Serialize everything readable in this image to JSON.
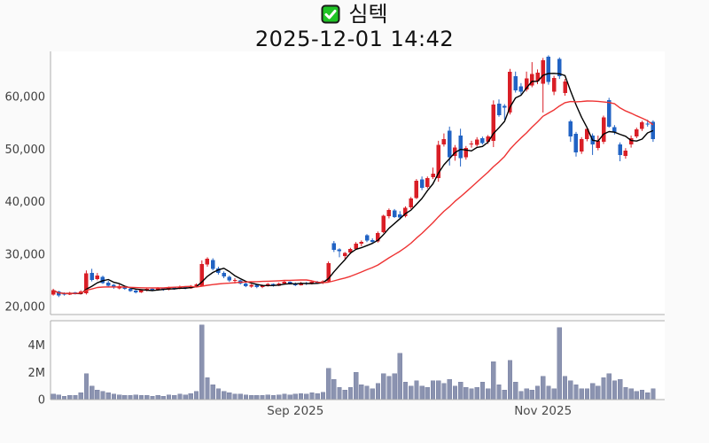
{
  "header": {
    "checkbox_icon": "checked-checkbox",
    "title": "심텍",
    "subtitle": "2025-12-01 14:42"
  },
  "colors": {
    "background": "#fafafa",
    "panel_bg": "#ffffff",
    "panel_border": "#adadad",
    "up_candle": "#d91e26",
    "down_candle": "#2163c4",
    "ma_fast": "#000000",
    "ma_slow": "#ee3333",
    "volume_bar": "#8b93b0",
    "volume_bar_border": "#7d86a6",
    "price_axis_text": "#404040",
    "x_axis_text": "#4a4a4a",
    "check_green": "#1fc426"
  },
  "chart_data": {
    "type": "candlestick",
    "title": "심텍",
    "timestamp": "2025-12-01 14:42",
    "grid": false,
    "legend": false,
    "price_axis": {
      "ticks": [
        20000,
        30000,
        40000,
        50000,
        60000
      ],
      "tick_labels": [
        "20,000",
        "30,000",
        "40,000",
        "50,000",
        "60,000"
      ],
      "range": [
        18500,
        68600
      ]
    },
    "volume_axis": {
      "ticks": [
        0,
        2000000,
        4000000
      ],
      "tick_labels": [
        "0",
        "2M",
        "4M"
      ],
      "range": [
        0,
        5800000
      ]
    },
    "x_axis": {
      "tick_dates": [
        "2025-09-01",
        "2025-11-03"
      ],
      "tick_labels": [
        "Sep 2025",
        "Nov 2025"
      ]
    },
    "overlays": [
      {
        "name": "MA5",
        "window": 5,
        "color_key": "ma_fast"
      },
      {
        "name": "MA20",
        "window": 20,
        "color_key": "ma_slow"
      }
    ],
    "dates": [
      "2025-07-01",
      "2025-07-02",
      "2025-07-03",
      "2025-07-04",
      "2025-07-07",
      "2025-07-08",
      "2025-07-09",
      "2025-07-10",
      "2025-07-11",
      "2025-07-14",
      "2025-07-15",
      "2025-07-16",
      "2025-07-17",
      "2025-07-18",
      "2025-07-21",
      "2025-07-22",
      "2025-07-23",
      "2025-07-24",
      "2025-07-25",
      "2025-07-28",
      "2025-07-29",
      "2025-07-30",
      "2025-07-31",
      "2025-08-01",
      "2025-08-04",
      "2025-08-05",
      "2025-08-06",
      "2025-08-07",
      "2025-08-08",
      "2025-08-11",
      "2025-08-12",
      "2025-08-13",
      "2025-08-14",
      "2025-08-15",
      "2025-08-18",
      "2025-08-19",
      "2025-08-20",
      "2025-08-21",
      "2025-08-22",
      "2025-08-25",
      "2025-08-26",
      "2025-08-27",
      "2025-08-28",
      "2025-08-29",
      "2025-09-01",
      "2025-09-02",
      "2025-09-03",
      "2025-09-04",
      "2025-09-05",
      "2025-09-08",
      "2025-09-09",
      "2025-09-10",
      "2025-09-11",
      "2025-09-12",
      "2025-09-15",
      "2025-09-16",
      "2025-09-17",
      "2025-09-18",
      "2025-09-19",
      "2025-09-22",
      "2025-09-23",
      "2025-09-24",
      "2025-09-25",
      "2025-09-26",
      "2025-09-29",
      "2025-09-30",
      "2025-10-01",
      "2025-10-02",
      "2025-10-03",
      "2025-10-06",
      "2025-10-07",
      "2025-10-08",
      "2025-10-09",
      "2025-10-10",
      "2025-10-13",
      "2025-10-14",
      "2025-10-15",
      "2025-10-16",
      "2025-10-17",
      "2025-10-20",
      "2025-10-21",
      "2025-10-22",
      "2025-10-23",
      "2025-10-24",
      "2025-10-27",
      "2025-10-28",
      "2025-10-29",
      "2025-10-30",
      "2025-10-31",
      "2025-11-03",
      "2025-11-04",
      "2025-11-05",
      "2025-11-06",
      "2025-11-07",
      "2025-11-10",
      "2025-11-11",
      "2025-11-12",
      "2025-11-13",
      "2025-11-14",
      "2025-11-17",
      "2025-11-18",
      "2025-11-19",
      "2025-11-20",
      "2025-11-21",
      "2025-11-24",
      "2025-11-25",
      "2025-11-26",
      "2025-11-27",
      "2025-11-28",
      "2025-12-01"
    ],
    "open": [
      22300,
      22900,
      22500,
      22300,
      22700,
      22400,
      22500,
      26400,
      25200,
      25700,
      24600,
      24100,
      23500,
      23800,
      23400,
      23000,
      22700,
      23100,
      23400,
      23100,
      23500,
      23200,
      23600,
      23400,
      23800,
      23500,
      23900,
      24000,
      28000,
      28900,
      27300,
      26400,
      25700,
      24900,
      25000,
      24400,
      23800,
      24100,
      23700,
      24000,
      24300,
      24000,
      24400,
      24700,
      24400,
      24100,
      24500,
      24300,
      24700,
      24500,
      24800,
      32100,
      30900,
      29600,
      30300,
      31000,
      32000,
      33600,
      32700,
      32400,
      34200,
      37200,
      38300,
      37600,
      37200,
      38900,
      40700,
      44200,
      42800,
      44700,
      44500,
      50900,
      53500,
      48700,
      52600,
      48500,
      50900,
      50800,
      52100,
      51400,
      51600,
      58700,
      58300,
      57000,
      63900,
      62000,
      61400,
      62100,
      63000,
      62500,
      67600,
      61000,
      67200,
      60700,
      55300,
      52900,
      49600,
      51900,
      52600,
      50200,
      51400,
      59400,
      54200,
      50900,
      48700,
      50900,
      52400,
      53900,
      54900,
      55200
    ],
    "high": [
      23400,
      23000,
      22700,
      22800,
      22800,
      23100,
      26900,
      27200,
      26400,
      25900,
      24900,
      24300,
      24200,
      23900,
      23600,
      23200,
      23300,
      23600,
      23500,
      23700,
      23600,
      23800,
      23800,
      24000,
      23900,
      24100,
      24400,
      28800,
      29400,
      29200,
      27600,
      26700,
      25900,
      25400,
      25100,
      24600,
      24300,
      24200,
      24200,
      24500,
      24400,
      24600,
      24900,
      24800,
      24600,
      24700,
      24700,
      24900,
      24900,
      25000,
      28600,
      32500,
      31100,
      30400,
      31200,
      32300,
      32600,
      33800,
      33000,
      34300,
      37500,
      38700,
      38600,
      38200,
      39100,
      40900,
      44300,
      44800,
      44800,
      46500,
      51600,
      53000,
      54300,
      50800,
      53900,
      50600,
      51600,
      52300,
      52400,
      52700,
      59300,
      59500,
      58600,
      65300,
      64800,
      62600,
      64800,
      66600,
      65200,
      67400,
      67900,
      64000,
      67500,
      63400,
      55600,
      53300,
      52300,
      54200,
      53000,
      52600,
      56400,
      59800,
      54600,
      51300,
      50200,
      52600,
      54100,
      55400,
      55600,
      55500
    ],
    "low": [
      22100,
      21800,
      22100,
      22200,
      22300,
      22300,
      22300,
      24800,
      25000,
      24300,
      23800,
      23400,
      23300,
      23200,
      22800,
      22500,
      22600,
      22900,
      22900,
      23000,
      23000,
      23100,
      23200,
      23300,
      23300,
      23400,
      23700,
      23800,
      27600,
      26900,
      26100,
      25400,
      24700,
      24400,
      24200,
      23700,
      23600,
      23500,
      23500,
      23800,
      23800,
      23900,
      24200,
      24200,
      23900,
      24000,
      24100,
      24200,
      24300,
      24300,
      24600,
      30400,
      29400,
      29100,
      30000,
      30800,
      31500,
      32300,
      32000,
      32200,
      34000,
      36800,
      36900,
      36600,
      37000,
      38600,
      40500,
      42200,
      42500,
      44300,
      43800,
      50500,
      46900,
      47800,
      46700,
      48000,
      50300,
      50500,
      50900,
      51000,
      50400,
      56200,
      55600,
      56600,
      60800,
      60400,
      61000,
      61800,
      62400,
      57000,
      62300,
      60300,
      63400,
      60200,
      51400,
      48600,
      49100,
      51500,
      48900,
      49800,
      51000,
      54100,
      52800,
      47700,
      48200,
      50300,
      52100,
      53500,
      54300,
      51400
    ],
    "close": [
      23100,
      22100,
      22300,
      22600,
      22400,
      22900,
      26300,
      25100,
      25900,
      24500,
      24000,
      23600,
      23900,
      23400,
      23000,
      22700,
      23100,
      23400,
      23100,
      23500,
      23200,
      23600,
      23400,
      23800,
      23500,
      23900,
      24200,
      28100,
      29100,
      27200,
      26400,
      25700,
      25000,
      25100,
      24400,
      23900,
      24100,
      23700,
      24000,
      24300,
      24000,
      24400,
      24700,
      24400,
      24100,
      24500,
      24300,
      24700,
      24500,
      24800,
      28300,
      30800,
      30600,
      30200,
      31000,
      32000,
      32300,
      32600,
      32300,
      34000,
      37300,
      38400,
      37100,
      37000,
      38800,
      40600,
      44000,
      42600,
      44500,
      45300,
      50800,
      51900,
      48500,
      50300,
      48300,
      50200,
      51100,
      51800,
      51200,
      52400,
      58500,
      56500,
      57900,
      64800,
      61200,
      61000,
      63500,
      64300,
      64600,
      67000,
      62800,
      63600,
      63900,
      62900,
      52400,
      49400,
      51900,
      53900,
      50900,
      51600,
      56100,
      54300,
      53300,
      48900,
      49700,
      52100,
      53800,
      55100,
      54800,
      51900
    ],
    "volume": [
      400000,
      350000,
      250000,
      300000,
      300000,
      500000,
      1900000,
      1000000,
      700000,
      600000,
      500000,
      400000,
      350000,
      300000,
      300000,
      350000,
      300000,
      300000,
      250000,
      300000,
      250000,
      350000,
      300000,
      400000,
      350000,
      450000,
      600000,
      5500000,
      1600000,
      1100000,
      800000,
      600000,
      500000,
      400000,
      400000,
      350000,
      300000,
      300000,
      300000,
      350000,
      300000,
      350000,
      400000,
      350000,
      400000,
      450000,
      400000,
      500000,
      450000,
      550000,
      2300000,
      1500000,
      900000,
      700000,
      900000,
      2000000,
      1100000,
      1000000,
      800000,
      1200000,
      1900000,
      1700000,
      1900000,
      3400000,
      1300000,
      1000000,
      1400000,
      1000000,
      900000,
      1400000,
      1400000,
      1200000,
      1500000,
      1000000,
      1300000,
      900000,
      800000,
      900000,
      1300000,
      800000,
      2800000,
      1100000,
      700000,
      2900000,
      1300000,
      600000,
      800000,
      700000,
      1000000,
      1700000,
      1000000,
      800000,
      5300000,
      1700000,
      1400000,
      1100000,
      800000,
      800000,
      1200000,
      1000000,
      1600000,
      1900000,
      1400000,
      1500000,
      900000,
      800000,
      600000,
      700000,
      500000,
      800000
    ]
  }
}
